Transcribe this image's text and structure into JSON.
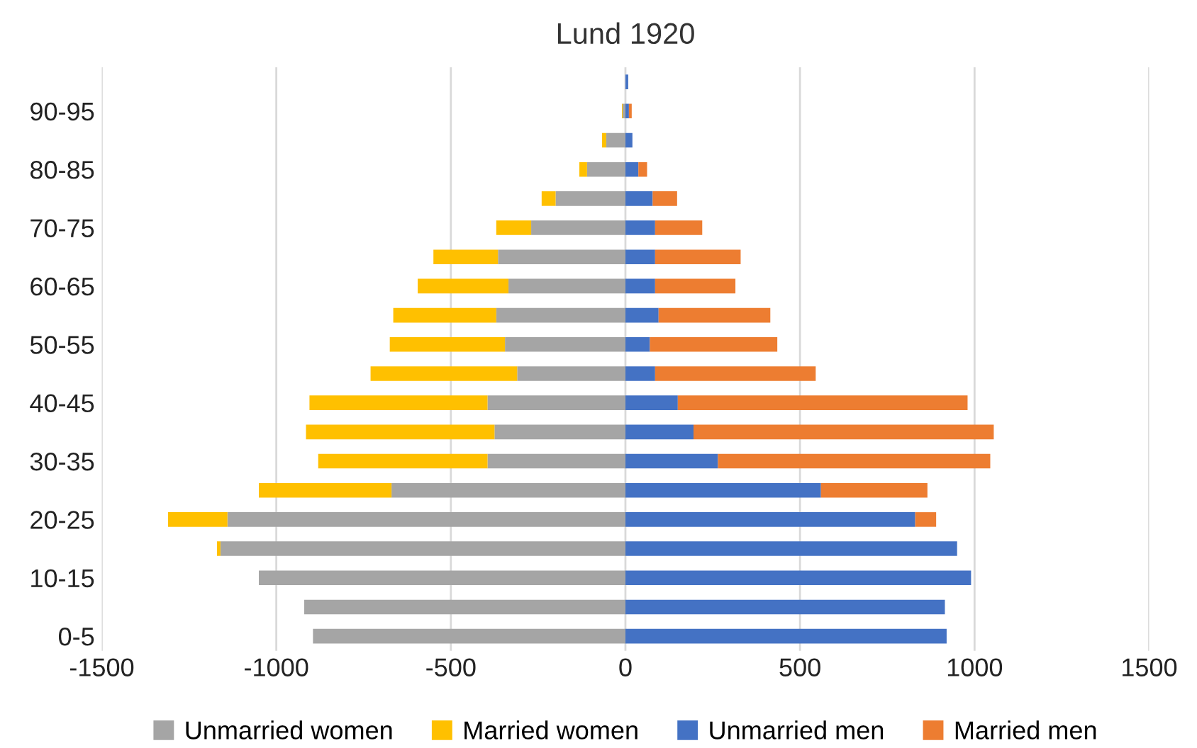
{
  "chart_data": {
    "type": "bar",
    "title": "Lund 1920",
    "orientation": "horizontal",
    "stacked": true,
    "categories": [
      null,
      "90-95",
      null,
      "80-85",
      null,
      "70-75",
      null,
      "60-65",
      null,
      "50-55",
      null,
      "40-45",
      null,
      "30-35",
      null,
      "20-25",
      null,
      "10-15",
      null,
      "0-5"
    ],
    "series": [
      {
        "name": "Unmarried women",
        "color": "#a5a5a5",
        "values": [
          null,
          -8,
          -55,
          -110,
          -200,
          -270,
          -365,
          -335,
          -370,
          -345,
          -310,
          -395,
          -375,
          -395,
          -670,
          -1140,
          -1160,
          -1050,
          -920,
          -895
        ]
      },
      {
        "name": "Married women",
        "color": "#ffc000",
        "values": [
          0,
          -2,
          -12,
          -22,
          -40,
          -100,
          -185,
          -260,
          -295,
          -330,
          -420,
          -510,
          -540,
          -485,
          -380,
          -170,
          -10,
          0,
          0,
          0
        ]
      },
      {
        "name": "Unmarried men",
        "color": "#4472c4",
        "values": [
          8,
          10,
          20,
          37,
          78,
          85,
          85,
          85,
          95,
          70,
          85,
          150,
          195,
          265,
          560,
          830,
          950,
          990,
          915,
          920
        ]
      },
      {
        "name": "Married men",
        "color": "#ed7d31",
        "values": [
          0,
          8,
          0,
          25,
          70,
          135,
          245,
          230,
          320,
          365,
          460,
          830,
          860,
          780,
          305,
          60,
          0,
          0,
          0,
          0
        ]
      }
    ],
    "xlim": [
      -1500,
      1500
    ],
    "xticks": [
      -1500,
      -1000,
      -500,
      0,
      500,
      1000,
      1500
    ],
    "grid": "x",
    "legend": "bottom"
  }
}
